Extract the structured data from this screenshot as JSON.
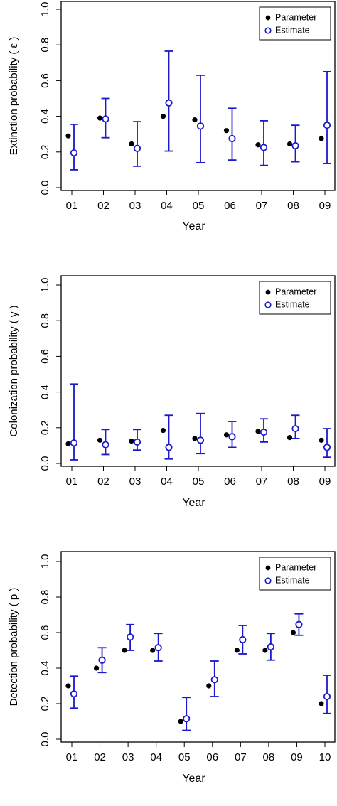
{
  "chart_data": [
    {
      "type": "scatter",
      "ylabel": "Extinction probability ( ε )",
      "xlabel": "Year",
      "ylim": [
        0,
        1
      ],
      "yticks": [
        "0.0",
        "0.2",
        "0.4",
        "0.6",
        "0.8",
        "1.0"
      ],
      "categories": [
        "01",
        "02",
        "03",
        "04",
        "05",
        "06",
        "07",
        "08",
        "09"
      ],
      "legend": {
        "placement": "top-right",
        "entries": [
          "Parameter",
          "Estimate"
        ]
      },
      "series": [
        {
          "name": "Parameter",
          "values": [
            0.29,
            0.39,
            0.245,
            0.4,
            0.38,
            0.32,
            0.24,
            0.245,
            0.275
          ]
        },
        {
          "name": "Estimate",
          "values": [
            0.195,
            0.385,
            0.22,
            0.475,
            0.345,
            0.275,
            0.225,
            0.235,
            0.35
          ],
          "lower": [
            0.1,
            0.28,
            0.12,
            0.205,
            0.14,
            0.155,
            0.125,
            0.145,
            0.135
          ],
          "upper": [
            0.355,
            0.5,
            0.37,
            0.765,
            0.63,
            0.445,
            0.375,
            0.35,
            0.65
          ]
        }
      ]
    },
    {
      "type": "scatter",
      "ylabel": "Colonization probability ( γ )",
      "xlabel": "Year",
      "ylim": [
        0,
        1
      ],
      "yticks": [
        "0.0",
        "0.2",
        "0.4",
        "0.6",
        "0.8",
        "1.0"
      ],
      "categories": [
        "01",
        "02",
        "03",
        "04",
        "05",
        "06",
        "07",
        "08",
        "09"
      ],
      "legend": {
        "placement": "top-right",
        "entries": [
          "Parameter",
          "Estimate"
        ]
      },
      "series": [
        {
          "name": "Parameter",
          "values": [
            0.11,
            0.13,
            0.125,
            0.185,
            0.14,
            0.16,
            0.18,
            0.145,
            0.13
          ]
        },
        {
          "name": "Estimate",
          "values": [
            0.115,
            0.105,
            0.12,
            0.09,
            0.13,
            0.15,
            0.175,
            0.195,
            0.09
          ],
          "lower": [
            0.02,
            0.05,
            0.075,
            0.025,
            0.055,
            0.09,
            0.12,
            0.14,
            0.035
          ],
          "upper": [
            0.445,
            0.19,
            0.19,
            0.27,
            0.28,
            0.235,
            0.25,
            0.27,
            0.195
          ]
        }
      ]
    },
    {
      "type": "scatter",
      "ylabel": "Detection probability ( p )",
      "xlabel": "Year",
      "ylim": [
        0,
        1
      ],
      "yticks": [
        "0.0",
        "0.2",
        "0.4",
        "0.6",
        "0.8",
        "1.0"
      ],
      "categories": [
        "01",
        "02",
        "03",
        "04",
        "05",
        "06",
        "07",
        "08",
        "09",
        "10"
      ],
      "legend": {
        "placement": "top-right",
        "entries": [
          "Parameter",
          "Estimate"
        ]
      },
      "series": [
        {
          "name": "Parameter",
          "values": [
            0.3,
            0.4,
            0.5,
            0.5,
            0.1,
            0.3,
            0.5,
            0.5,
            0.6,
            0.2
          ]
        },
        {
          "name": "Estimate",
          "values": [
            0.255,
            0.445,
            0.575,
            0.515,
            0.115,
            0.335,
            0.56,
            0.52,
            0.645,
            0.24
          ],
          "lower": [
            0.175,
            0.375,
            0.5,
            0.44,
            0.05,
            0.24,
            0.48,
            0.445,
            0.585,
            0.145
          ],
          "upper": [
            0.355,
            0.515,
            0.645,
            0.595,
            0.235,
            0.44,
            0.64,
            0.595,
            0.705,
            0.36
          ]
        }
      ]
    }
  ],
  "colors": {
    "parameter": "#000000",
    "estimate": "#1a1acc",
    "axis": "#000000"
  }
}
